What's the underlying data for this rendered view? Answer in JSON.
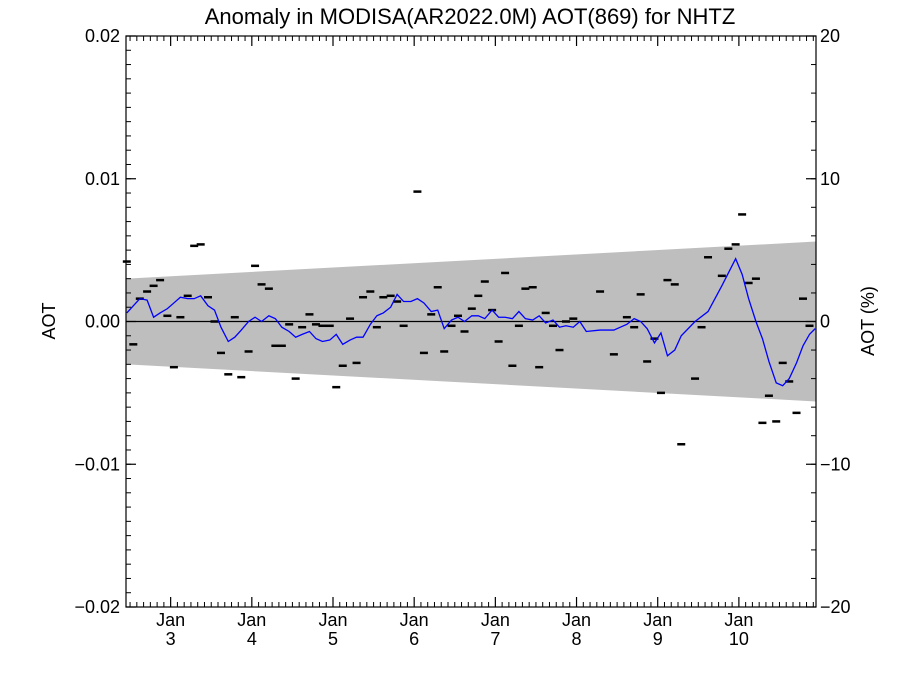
{
  "chart_data": {
    "type": "line",
    "title": "Anomaly in MODISA(AR2022.0M) AOT(869) for NHTZ",
    "ylabel": "AOT",
    "ylabel_right": "AOT (%)",
    "xlabel": "",
    "ylim": [
      -0.02,
      0.02
    ],
    "ylim_right": [
      -20,
      20
    ],
    "y_ticks": [
      -0.02,
      -0.01,
      0.0,
      0.01,
      0.02
    ],
    "y_tick_labels": [
      "−0.02",
      "−0.01",
      "0.00",
      "0.01",
      "0.02"
    ],
    "y_right_ticks": [
      -20,
      -10,
      0,
      10,
      20
    ],
    "y_right_tick_labels": [
      "−20",
      "−10",
      "0",
      "10",
      "20"
    ],
    "xlim": [
      2002.45,
      2010.95
    ],
    "x_ticks": [
      {
        "x": 2003.0,
        "top": "Jan",
        "bottom": "3"
      },
      {
        "x": 2004.0,
        "top": "Jan",
        "bottom": "4"
      },
      {
        "x": 2005.0,
        "top": "Jan",
        "bottom": "5"
      },
      {
        "x": 2006.0,
        "top": "Jan",
        "bottom": "6"
      },
      {
        "x": 2007.0,
        "top": "Jan",
        "bottom": "7"
      },
      {
        "x": 2008.0,
        "top": "Jan",
        "bottom": "8"
      },
      {
        "x": 2009.0,
        "top": "Jan",
        "bottom": "9"
      },
      {
        "x": 2010.0,
        "top": "Jan",
        "bottom": "10"
      }
    ],
    "grid": false,
    "band": {
      "x": [
        2002.45,
        2010.95
      ],
      "upper": [
        0.003,
        0.0056
      ],
      "lower": [
        -0.003,
        -0.0056
      ],
      "color": "#bebebe"
    },
    "zero_line": true,
    "series": [
      {
        "type": "scatter",
        "marker": "dash",
        "color": "#000000",
        "points": [
          [
            2002.46,
            0.0042
          ],
          [
            2002.54,
            -0.0016
          ],
          [
            2002.62,
            0.0016
          ],
          [
            2002.71,
            0.0021
          ],
          [
            2002.79,
            0.0025
          ],
          [
            2002.87,
            0.0029
          ],
          [
            2002.96,
            0.0004
          ],
          [
            2003.04,
            -0.0032
          ],
          [
            2003.12,
            0.0003
          ],
          [
            2003.21,
            0.0018
          ],
          [
            2003.29,
            0.0053
          ],
          [
            2003.37,
            0.0054
          ],
          [
            2003.46,
            0.0017
          ],
          [
            2003.54,
            0.0
          ],
          [
            2003.62,
            -0.0022
          ],
          [
            2003.71,
            -0.0037
          ],
          [
            2003.79,
            0.0003
          ],
          [
            2003.87,
            -0.0039
          ],
          [
            2003.96,
            -0.0021
          ],
          [
            2004.04,
            0.0039
          ],
          [
            2004.12,
            0.0026
          ],
          [
            2004.21,
            0.0023
          ],
          [
            2004.29,
            -0.0017
          ],
          [
            2004.37,
            -0.0017
          ],
          [
            2004.46,
            -0.0002
          ],
          [
            2004.54,
            -0.004
          ],
          [
            2004.62,
            -0.0004
          ],
          [
            2004.71,
            0.0005
          ],
          [
            2004.79,
            -0.0002
          ],
          [
            2004.87,
            -0.0003
          ],
          [
            2004.96,
            -0.0003
          ],
          [
            2005.04,
            -0.0046
          ],
          [
            2005.12,
            -0.0031
          ],
          [
            2005.21,
            0.0002
          ],
          [
            2005.29,
            -0.0029
          ],
          [
            2005.37,
            0.0017
          ],
          [
            2005.46,
            0.0021
          ],
          [
            2005.54,
            -0.0004
          ],
          [
            2005.62,
            0.0017
          ],
          [
            2005.71,
            0.0018
          ],
          [
            2005.79,
            0.0014
          ],
          [
            2005.87,
            -0.0003
          ],
          [
            2006.04,
            0.0091
          ],
          [
            2006.12,
            -0.0022
          ],
          [
            2006.21,
            0.0005
          ],
          [
            2006.29,
            0.0024
          ],
          [
            2006.37,
            -0.0021
          ],
          [
            2006.46,
            -0.0003
          ],
          [
            2006.54,
            0.0004
          ],
          [
            2006.62,
            -0.0007
          ],
          [
            2006.71,
            0.0009
          ],
          [
            2006.79,
            0.0018
          ],
          [
            2006.87,
            0.0028
          ],
          [
            2006.96,
            0.0008
          ],
          [
            2007.04,
            -0.0014
          ],
          [
            2007.12,
            0.0034
          ],
          [
            2007.21,
            -0.0031
          ],
          [
            2007.29,
            -0.0003
          ],
          [
            2007.37,
            0.0023
          ],
          [
            2007.46,
            0.0024
          ],
          [
            2007.54,
            -0.0032
          ],
          [
            2007.62,
            0.0006
          ],
          [
            2007.71,
            -0.0003
          ],
          [
            2007.79,
            -0.002
          ],
          [
            2007.87,
            0.0
          ],
          [
            2007.96,
            0.0002
          ],
          [
            2008.29,
            0.0021
          ],
          [
            2008.46,
            -0.0023
          ],
          [
            2008.62,
            0.0003
          ],
          [
            2008.71,
            -0.0004
          ],
          [
            2008.79,
            0.0019
          ],
          [
            2008.87,
            -0.0028
          ],
          [
            2008.96,
            -0.0012
          ],
          [
            2009.04,
            -0.005
          ],
          [
            2009.12,
            0.0029
          ],
          [
            2009.21,
            0.0026
          ],
          [
            2009.29,
            -0.0086
          ],
          [
            2009.46,
            -0.004
          ],
          [
            2009.54,
            -0.0004
          ],
          [
            2009.62,
            0.0045
          ],
          [
            2009.79,
            0.0032
          ],
          [
            2009.87,
            0.0051
          ],
          [
            2009.96,
            0.0054
          ],
          [
            2010.04,
            0.0075
          ],
          [
            2010.12,
            0.0027
          ],
          [
            2010.21,
            0.003
          ],
          [
            2010.29,
            -0.0071
          ],
          [
            2010.37,
            -0.0052
          ],
          [
            2010.46,
            -0.007
          ],
          [
            2010.54,
            -0.0029
          ],
          [
            2010.62,
            -0.0042
          ],
          [
            2010.71,
            -0.0064
          ],
          [
            2010.79,
            0.0016
          ],
          [
            2010.87,
            -0.0003
          ]
        ]
      },
      {
        "type": "line",
        "color": "#0000ff",
        "points": [
          [
            2002.46,
            0.0006
          ],
          [
            2002.54,
            0.0011
          ],
          [
            2002.62,
            0.0016
          ],
          [
            2002.71,
            0.0015
          ],
          [
            2002.79,
            0.0003
          ],
          [
            2002.87,
            0.0006
          ],
          [
            2002.96,
            0.0009
          ],
          [
            2003.04,
            0.0013
          ],
          [
            2003.12,
            0.0017
          ],
          [
            2003.21,
            0.0016
          ],
          [
            2003.29,
            0.0016
          ],
          [
            2003.37,
            0.0018
          ],
          [
            2003.46,
            0.0011
          ],
          [
            2003.54,
            0.0008
          ],
          [
            2003.62,
            -0.0004
          ],
          [
            2003.71,
            -0.0014
          ],
          [
            2003.79,
            -0.0011
          ],
          [
            2003.87,
            -0.0006
          ],
          [
            2003.96,
            0.0
          ],
          [
            2004.04,
            0.0003
          ],
          [
            2004.12,
            0.0
          ],
          [
            2004.21,
            0.0004
          ],
          [
            2004.29,
            0.0002
          ],
          [
            2004.37,
            -0.0004
          ],
          [
            2004.46,
            -0.0007
          ],
          [
            2004.54,
            -0.0011
          ],
          [
            2004.62,
            -0.0009
          ],
          [
            2004.71,
            -0.0007
          ],
          [
            2004.79,
            -0.0012
          ],
          [
            2004.87,
            -0.0014
          ],
          [
            2004.96,
            -0.0013
          ],
          [
            2005.04,
            -0.0009
          ],
          [
            2005.12,
            -0.0016
          ],
          [
            2005.21,
            -0.0013
          ],
          [
            2005.29,
            -0.0011
          ],
          [
            2005.37,
            -0.0011
          ],
          [
            2005.46,
            -0.0002
          ],
          [
            2005.54,
            0.0004
          ],
          [
            2005.62,
            0.0006
          ],
          [
            2005.71,
            0.001
          ],
          [
            2005.79,
            0.0019
          ],
          [
            2005.87,
            0.0014
          ],
          [
            2005.96,
            0.0014
          ],
          [
            2006.04,
            0.0016
          ],
          [
            2006.12,
            0.0013
          ],
          [
            2006.21,
            0.0007
          ],
          [
            2006.29,
            0.0008
          ],
          [
            2006.37,
            -0.0005
          ],
          [
            2006.46,
            0.0001
          ],
          [
            2006.54,
            0.0003
          ],
          [
            2006.62,
            0.0
          ],
          [
            2006.71,
            0.0004
          ],
          [
            2006.79,
            0.0004
          ],
          [
            2006.87,
            0.0002
          ],
          [
            2006.96,
            0.0008
          ],
          [
            2007.04,
            0.0003
          ],
          [
            2007.12,
            0.0003
          ],
          [
            2007.21,
            0.0002
          ],
          [
            2007.29,
            0.0007
          ],
          [
            2007.37,
            0.0002
          ],
          [
            2007.46,
            0.0001
          ],
          [
            2007.54,
            0.0004
          ],
          [
            2007.62,
            -0.0001
          ],
          [
            2007.71,
            0.0001
          ],
          [
            2007.79,
            -0.0004
          ],
          [
            2007.87,
            -0.0003
          ],
          [
            2007.96,
            -0.0004
          ],
          [
            2008.04,
            0.0
          ],
          [
            2008.12,
            -0.0007
          ],
          [
            2008.29,
            -0.0006
          ],
          [
            2008.46,
            -0.0006
          ],
          [
            2008.54,
            -0.0004
          ],
          [
            2008.62,
            -0.0002
          ],
          [
            2008.71,
            0.0002
          ],
          [
            2008.79,
            0.0
          ],
          [
            2008.87,
            -0.0005
          ],
          [
            2008.96,
            -0.0015
          ],
          [
            2009.04,
            -0.0008
          ],
          [
            2009.12,
            -0.0024
          ],
          [
            2009.21,
            -0.002
          ],
          [
            2009.29,
            -0.001
          ],
          [
            2009.46,
            0.0
          ],
          [
            2009.62,
            0.0007
          ],
          [
            2009.79,
            0.0025
          ],
          [
            2009.96,
            0.0044
          ],
          [
            2010.04,
            0.0033
          ],
          [
            2010.12,
            0.0016
          ],
          [
            2010.21,
            0.0
          ],
          [
            2010.29,
            -0.0012
          ],
          [
            2010.37,
            -0.0028
          ],
          [
            2010.46,
            -0.0043
          ],
          [
            2010.54,
            -0.0045
          ],
          [
            2010.62,
            -0.004
          ],
          [
            2010.71,
            -0.0029
          ],
          [
            2010.79,
            -0.0017
          ],
          [
            2010.87,
            -0.0009
          ],
          [
            2010.94,
            -0.0005
          ]
        ]
      }
    ]
  }
}
